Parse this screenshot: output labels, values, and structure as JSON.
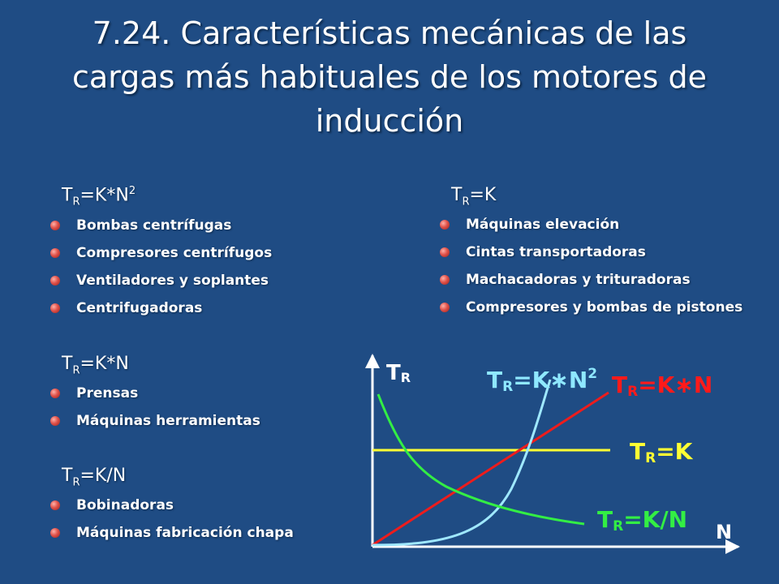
{
  "title": {
    "line1": "7.24. Características mecánicas de las",
    "line2": "cargas más habituales de los motores de",
    "line3": "inducción"
  },
  "groups": [
    {
      "heading": {
        "t": "T",
        "sub": "R",
        "eq": "=K*N",
        "sup": "2"
      },
      "items": [
        "Bombas centrífugas",
        "Compresores centrífugos",
        "Ventiladores y soplantes",
        "Centrifugadoras"
      ]
    },
    {
      "heading": {
        "t": "T",
        "sub": "R",
        "eq": "=K",
        "sup": ""
      },
      "items": [
        "Máquinas elevación",
        "Cintas transportadoras",
        "Machacadoras y trituradoras",
        "Compresores y bombas de pistones"
      ]
    },
    {
      "heading": {
        "t": "T",
        "sub": "R",
        "eq": "=K*N",
        "sup": ""
      },
      "items": [
        "Prensas",
        "Máquinas herramientas"
      ]
    },
    {
      "heading": {
        "t": "T",
        "sub": "R",
        "eq": "=K/N",
        "sup": ""
      },
      "items": [
        "Bobinadoras",
        "Máquinas fabricación chapa"
      ]
    }
  ],
  "diagram": {
    "y_axis_label": {
      "t": "T",
      "sub": "R"
    },
    "x_axis_label": "N",
    "curves": {
      "quadratic": {
        "t": "T",
        "sub": "R",
        "eq": "=K∗N",
        "sup": "2",
        "color": "#8fe8ff"
      },
      "linear": {
        "t": "T",
        "sub": "R",
        "eq": "=K∗N",
        "color": "#ff1a1a"
      },
      "constant": {
        "t": "T",
        "sub": "R",
        "eq": "=K",
        "color": "#ffff33"
      },
      "inverse": {
        "t": "T",
        "sub": "R",
        "eq": "=K/N",
        "color": "#33ee44"
      }
    },
    "colors": {
      "background": "#1f4c84",
      "axis": "#ffffff"
    }
  }
}
